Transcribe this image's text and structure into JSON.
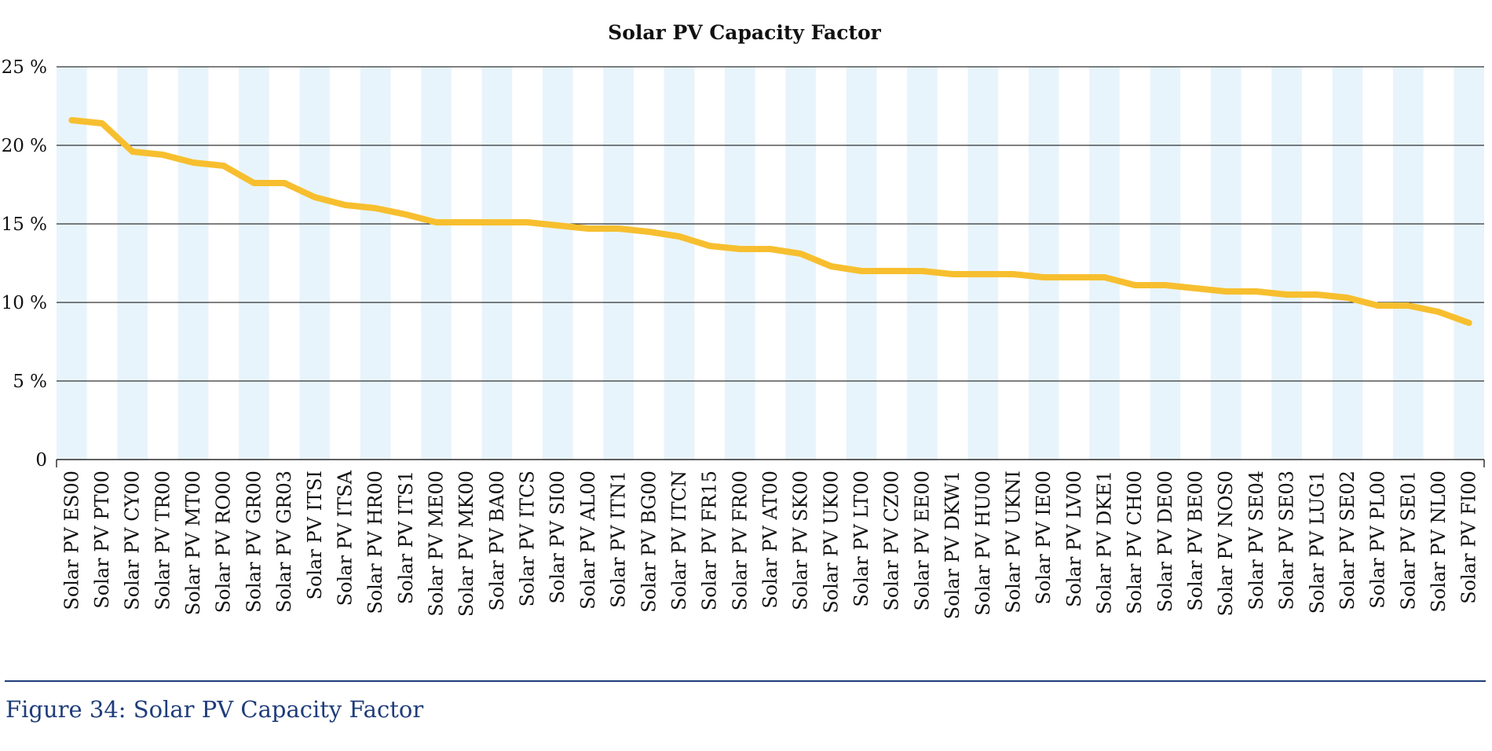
{
  "chart_data": {
    "type": "line",
    "title": "Solar  PV Capacity Factor",
    "xlabel": "",
    "ylabel": "",
    "ylim": [
      0,
      25
    ],
    "yticks": [
      "0",
      "5 %",
      "10 %",
      "15 %",
      "20 %",
      "25 %"
    ],
    "ytick_values": [
      0,
      5,
      10,
      15,
      20,
      25
    ],
    "grid": true,
    "alternating_column_bands": true,
    "line_color": "#f7bf2f",
    "band_color": "#e8f4fc",
    "categories": [
      "Solar PV ES00",
      "Solar PV PT00",
      "Solar PV CY00",
      "Solar PV TR00",
      "Solar PV MT00",
      "Solar PV RO00",
      "Solar PV GR00",
      "Solar PV GR03",
      "Solar PV ITSI",
      "Solar PV ITSA",
      "Solar PV HR00",
      "Solar PV ITS1",
      "Solar PV ME00",
      "Solar PV MK00",
      "Solar PV BA00",
      "Solar PV ITCS",
      "Solar PV SI00",
      "Solar PV AL00",
      "Solar PV ITN1",
      "Solar PV BG00",
      "Solar PV ITCN",
      "Solar PV FR15",
      "Solar PV FR00",
      "Solar PV AT00",
      "Solar PV SK00",
      "Solar PV UK00",
      "Solar PV LT00",
      "Solar PV CZ00",
      "Solar PV EE00",
      "Solar PV DKW1",
      "Solar PV HU00",
      "Solar PV UKNI",
      "Solar PV IE00",
      "Solar PV LV00",
      "Solar PV DKE1",
      "Solar PV CH00",
      "Solar PV DE00",
      "Solar PV BE00",
      "Solar PV NOS0",
      "Solar PV SE04",
      "Solar PV SE03",
      "Solar PV LUG1",
      "Solar PV SE02",
      "Solar PV PL00",
      "Solar PV SE01",
      "Solar PV NL00",
      "Solar PV FI00"
    ],
    "series": [
      {
        "values": [
          21.6,
          21.4,
          19.6,
          19.4,
          18.9,
          18.7,
          17.6,
          17.6,
          16.7,
          16.2,
          16.0,
          15.6,
          15.1,
          15.1,
          15.1,
          15.1,
          14.9,
          14.7,
          14.7,
          14.5,
          14.2,
          13.6,
          13.4,
          13.4,
          13.1,
          12.3,
          12.0,
          12.0,
          12.0,
          11.8,
          11.8,
          11.8,
          11.6,
          11.6,
          11.6,
          11.1,
          11.1,
          10.9,
          10.7,
          10.7,
          10.5,
          10.5,
          10.3,
          9.8,
          9.8,
          9.4,
          8.7
        ]
      }
    ]
  },
  "caption": "Figure 34: Solar PV Capacity Factor"
}
